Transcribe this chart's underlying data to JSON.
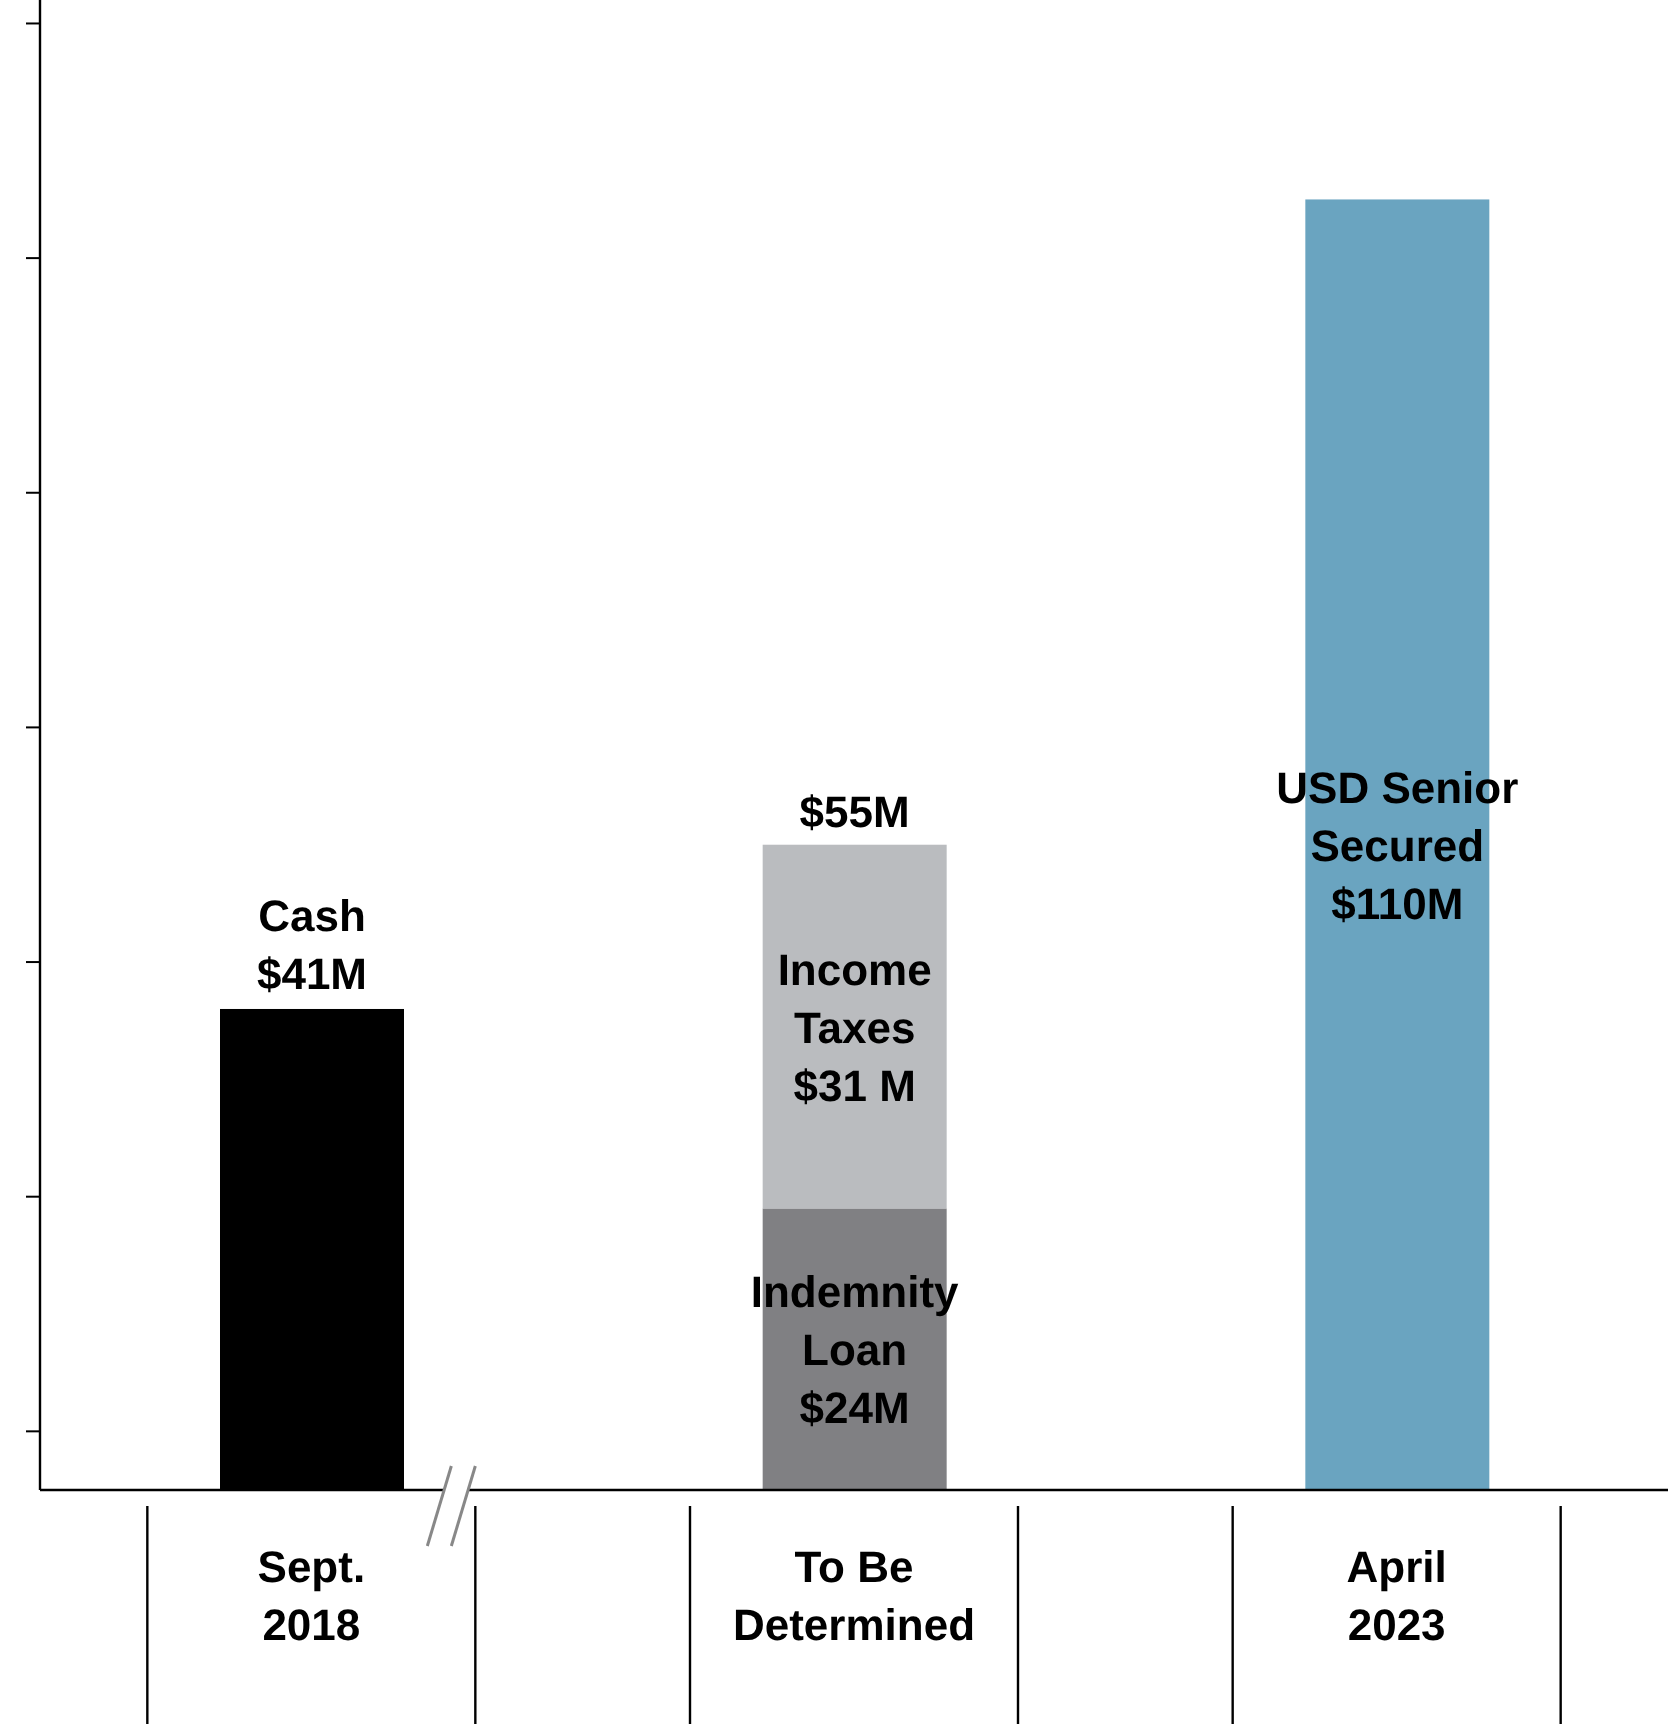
{
  "chart_data": {
    "type": "bar",
    "stacked": true,
    "categories": [
      "Sept. 2018",
      "To Be Determined",
      "April 2023"
    ],
    "series": [
      {
        "name": "Cash",
        "color": "#000000",
        "values": [
          41,
          null,
          null
        ],
        "value_labels": [
          "$41M",
          null,
          null
        ]
      },
      {
        "name": "Indemnity Loan",
        "color": "#808083",
        "values": [
          null,
          24,
          null
        ],
        "value_labels": [
          null,
          "$24M",
          null
        ]
      },
      {
        "name": "Income Taxes",
        "color": "#babcbf",
        "values": [
          null,
          31,
          null
        ],
        "value_labels": [
          null,
          "$31 M",
          null
        ]
      },
      {
        "name": "USD Senior Secured",
        "color": "#6aa4c0",
        "values": [
          null,
          null,
          110
        ],
        "value_labels": [
          null,
          null,
          "$110M"
        ]
      }
    ],
    "totals": [
      null,
      "$55M",
      null
    ],
    "ylim": [
      0,
      127
    ],
    "yticks": [
      {
        "value": 5,
        "label": null
      },
      {
        "value": 25,
        "label": null
      },
      {
        "value": 45,
        "label": null
      },
      {
        "value": 65,
        "label": null
      },
      {
        "value": 85,
        "label": null
      },
      {
        "value": 105,
        "label": null
      },
      {
        "value": 125,
        "label": null
      }
    ]
  }
}
